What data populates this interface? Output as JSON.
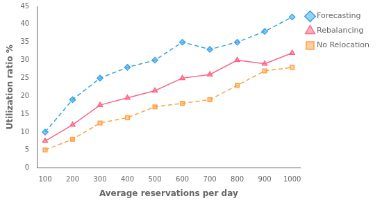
{
  "chart_data": {
    "type": "line",
    "x": [
      100,
      200,
      300,
      400,
      500,
      600,
      700,
      800,
      900,
      1000
    ],
    "series": [
      {
        "name": "Forecasting",
        "values": [
          10,
          19,
          25,
          28,
          30,
          35,
          33,
          35,
          38,
          42
        ],
        "marker": "diamond",
        "line_style": "dashed"
      },
      {
        "name": "Rebalancing",
        "values": [
          7.5,
          12,
          17.5,
          19.5,
          21.5,
          25,
          26,
          30,
          29,
          32
        ],
        "marker": "triangle",
        "line_style": "solid"
      },
      {
        "name": "No Relocation",
        "values": [
          5,
          8,
          12.5,
          14,
          17,
          18,
          19,
          23,
          27,
          28
        ],
        "marker": "square",
        "line_style": "dashed"
      }
    ],
    "xlabel": "Average reservations per day",
    "ylabel": "Utilization ratio %",
    "xlim": [
      70,
      1030
    ],
    "ylim": [
      0,
      45
    ],
    "xticks": [
      100,
      200,
      300,
      400,
      500,
      600,
      700,
      800,
      900,
      1000
    ],
    "yticks": [
      0,
      5,
      10,
      15,
      20,
      25,
      30,
      35,
      40,
      45
    ],
    "grid": false,
    "legend": "right"
  }
}
